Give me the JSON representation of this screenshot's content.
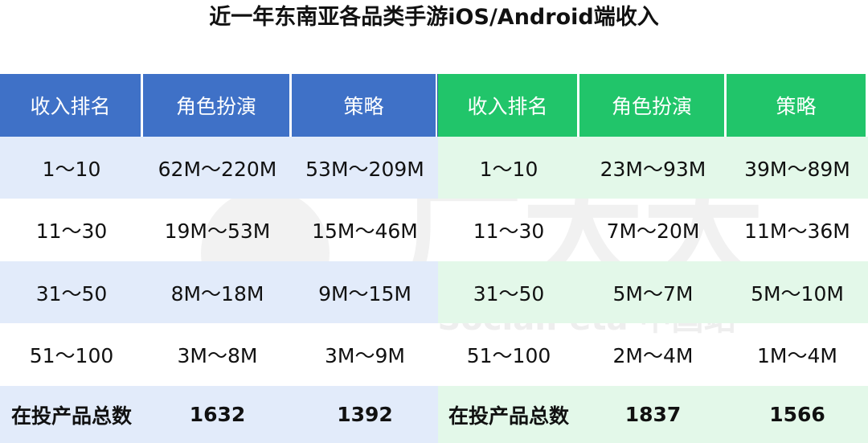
{
  "title": "近一年东南亚各品类手游iOS/Android端收入",
  "watermark": {
    "brand": "广大大",
    "sub": "SocialPeta 中国站"
  },
  "chart_data": {
    "type": "table",
    "tables": [
      {
        "platform_color": "#3f71c7",
        "columns": [
          "收入排名",
          "角色扮演",
          "策略"
        ],
        "rows": [
          [
            "1～10",
            "62M～220M",
            "53M～209M"
          ],
          [
            "11～30",
            "19M～53M",
            "15M～46M"
          ],
          [
            "31～50",
            "8M～18M",
            "9M～15M"
          ],
          [
            "51～100",
            "3M～8M",
            "3M～9M"
          ],
          [
            "在投产品总数",
            "1632",
            "1392"
          ]
        ]
      },
      {
        "platform_color": "#21c56a",
        "columns": [
          "收入排名",
          "角色扮演",
          "策略"
        ],
        "rows": [
          [
            "1～10",
            "23M～93M",
            "39M～89M"
          ],
          [
            "11～30",
            "7M～20M",
            "11M～36M"
          ],
          [
            "31～50",
            "5M～7M",
            "5M～10M"
          ],
          [
            "51～100",
            "2M～4M",
            "1M～4M"
          ],
          [
            "在投产品总数",
            "1837",
            "1566"
          ]
        ]
      }
    ]
  }
}
